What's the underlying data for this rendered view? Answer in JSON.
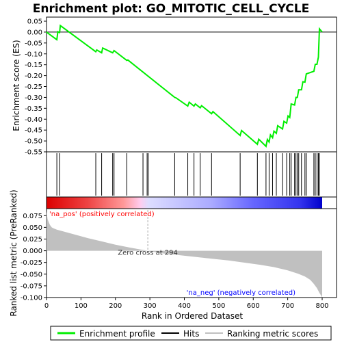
{
  "chart_data": {
    "type": "line",
    "title": "Enrichment plot: GO_MITOTIC_CELL_CYCLE",
    "xlabel": "Rank in Ordered Dataset",
    "es_panel": {
      "ylabel": "Enrichment score (ES)",
      "ylim": [
        -0.55,
        0.05
      ],
      "yticks": [
        0.05,
        0.0,
        -0.05,
        -0.1,
        -0.15,
        -0.2,
        -0.25,
        -0.3,
        -0.35,
        -0.4,
        -0.45,
        -0.5,
        -0.55
      ],
      "ytick_labels": [
        "0.05",
        "0.00",
        "-0.05",
        "-0.10",
        "-0.15",
        "-0.20",
        "-0.25",
        "-0.30",
        "-0.35",
        "-0.40",
        "-0.45",
        "-0.50",
        "-0.55"
      ],
      "grid": false,
      "series": [
        {
          "name": "Enrichment profile",
          "color": "#00ee00",
          "x": [
            0,
            30,
            33,
            38,
            40,
            143,
            146,
            160,
            163,
            192,
            196,
            233,
            236,
            372,
            376,
            410,
            414,
            428,
            432,
            446,
            450,
            479,
            483,
            562,
            566,
            612,
            616,
            637,
            641,
            646,
            650,
            656,
            660,
            667,
            671,
            685,
            689,
            697,
            701,
            706,
            710,
            720,
            724,
            728,
            732,
            740,
            744,
            750,
            754,
            776,
            780,
            785,
            789,
            792,
            800
          ],
          "y": [
            0.0,
            -0.035,
            0.002,
            -0.002,
            0.03,
            -0.09,
            -0.082,
            -0.095,
            -0.073,
            -0.095,
            -0.085,
            -0.13,
            -0.128,
            -0.3,
            -0.302,
            -0.34,
            -0.322,
            -0.34,
            -0.33,
            -0.348,
            -0.338,
            -0.375,
            -0.365,
            -0.475,
            -0.452,
            -0.515,
            -0.492,
            -0.525,
            -0.493,
            -0.505,
            -0.472,
            -0.485,
            -0.455,
            -0.465,
            -0.43,
            -0.445,
            -0.41,
            -0.418,
            -0.385,
            -0.392,
            -0.33,
            -0.335,
            -0.3,
            -0.3,
            -0.265,
            -0.265,
            -0.228,
            -0.23,
            -0.192,
            -0.18,
            -0.148,
            -0.148,
            -0.115,
            0.015,
            0.0
          ]
        }
      ]
    },
    "hits": {
      "name": "Hits",
      "x": [
        30,
        38,
        143,
        160,
        192,
        196,
        233,
        280,
        292,
        295,
        372,
        410,
        428,
        446,
        479,
        562,
        612,
        637,
        646,
        656,
        667,
        685,
        697,
        706,
        710,
        720,
        724,
        728,
        732,
        740,
        750,
        754,
        776,
        780,
        785,
        789,
        792
      ]
    },
    "metric_panel": {
      "name": "Ranking metric scores",
      "ylabel": "Ranked list metric (PreRanked)",
      "ylim": [
        -0.1,
        0.09
      ],
      "yticks": [
        0.075,
        0.05,
        0.025,
        0.0,
        -0.025,
        -0.05,
        -0.075,
        -0.1
      ],
      "ytick_labels": [
        "0.075",
        "0.050",
        "0.025",
        "0.000",
        "-0.025",
        "-0.050",
        "-0.075",
        "-0.100"
      ],
      "x": [
        0,
        3,
        6,
        10,
        15,
        20,
        30,
        50,
        80,
        120,
        160,
        200,
        240,
        270,
        294,
        330,
        380,
        430,
        480,
        530,
        580,
        620,
        660,
        700,
        730,
        750,
        765,
        775,
        785,
        792,
        798,
        800
      ],
      "y": [
        0.085,
        0.068,
        0.062,
        0.055,
        0.05,
        0.048,
        0.045,
        0.041,
        0.035,
        0.027,
        0.02,
        0.013,
        0.007,
        0.003,
        0.0,
        -0.005,
        -0.009,
        -0.013,
        -0.017,
        -0.021,
        -0.026,
        -0.03,
        -0.035,
        -0.042,
        -0.049,
        -0.055,
        -0.062,
        -0.07,
        -0.08,
        -0.09,
        -0.097,
        -0.1
      ],
      "zero_cross_label": "Zero cross at 294",
      "pos_label": "'na_pos' (positively correlated)",
      "neg_label": "'na_neg' (negatively correlated)"
    },
    "xaxis": {
      "xlim": [
        0,
        800
      ],
      "xticks": [
        0,
        100,
        200,
        300,
        400,
        500,
        600,
        700,
        800
      ],
      "xtick_labels": [
        "0",
        "100",
        "200",
        "300",
        "400",
        "500",
        "600",
        "700",
        "800"
      ]
    },
    "colors": {
      "es_line": "#00ee00",
      "hit_line": "#000000",
      "metric_fill": "#c0c0c0",
      "zero_cross_line": "#aaaaaa",
      "pos_label": "#ff0000",
      "neg_label": "#0000ff"
    },
    "legend": {
      "placement": "bottom",
      "items": [
        {
          "label": "Enrichment profile",
          "color": "#00ee00"
        },
        {
          "label": "Hits",
          "color": "#000000"
        },
        {
          "label": "Ranking metric scores",
          "color": "#c0c0c0"
        }
      ]
    }
  }
}
